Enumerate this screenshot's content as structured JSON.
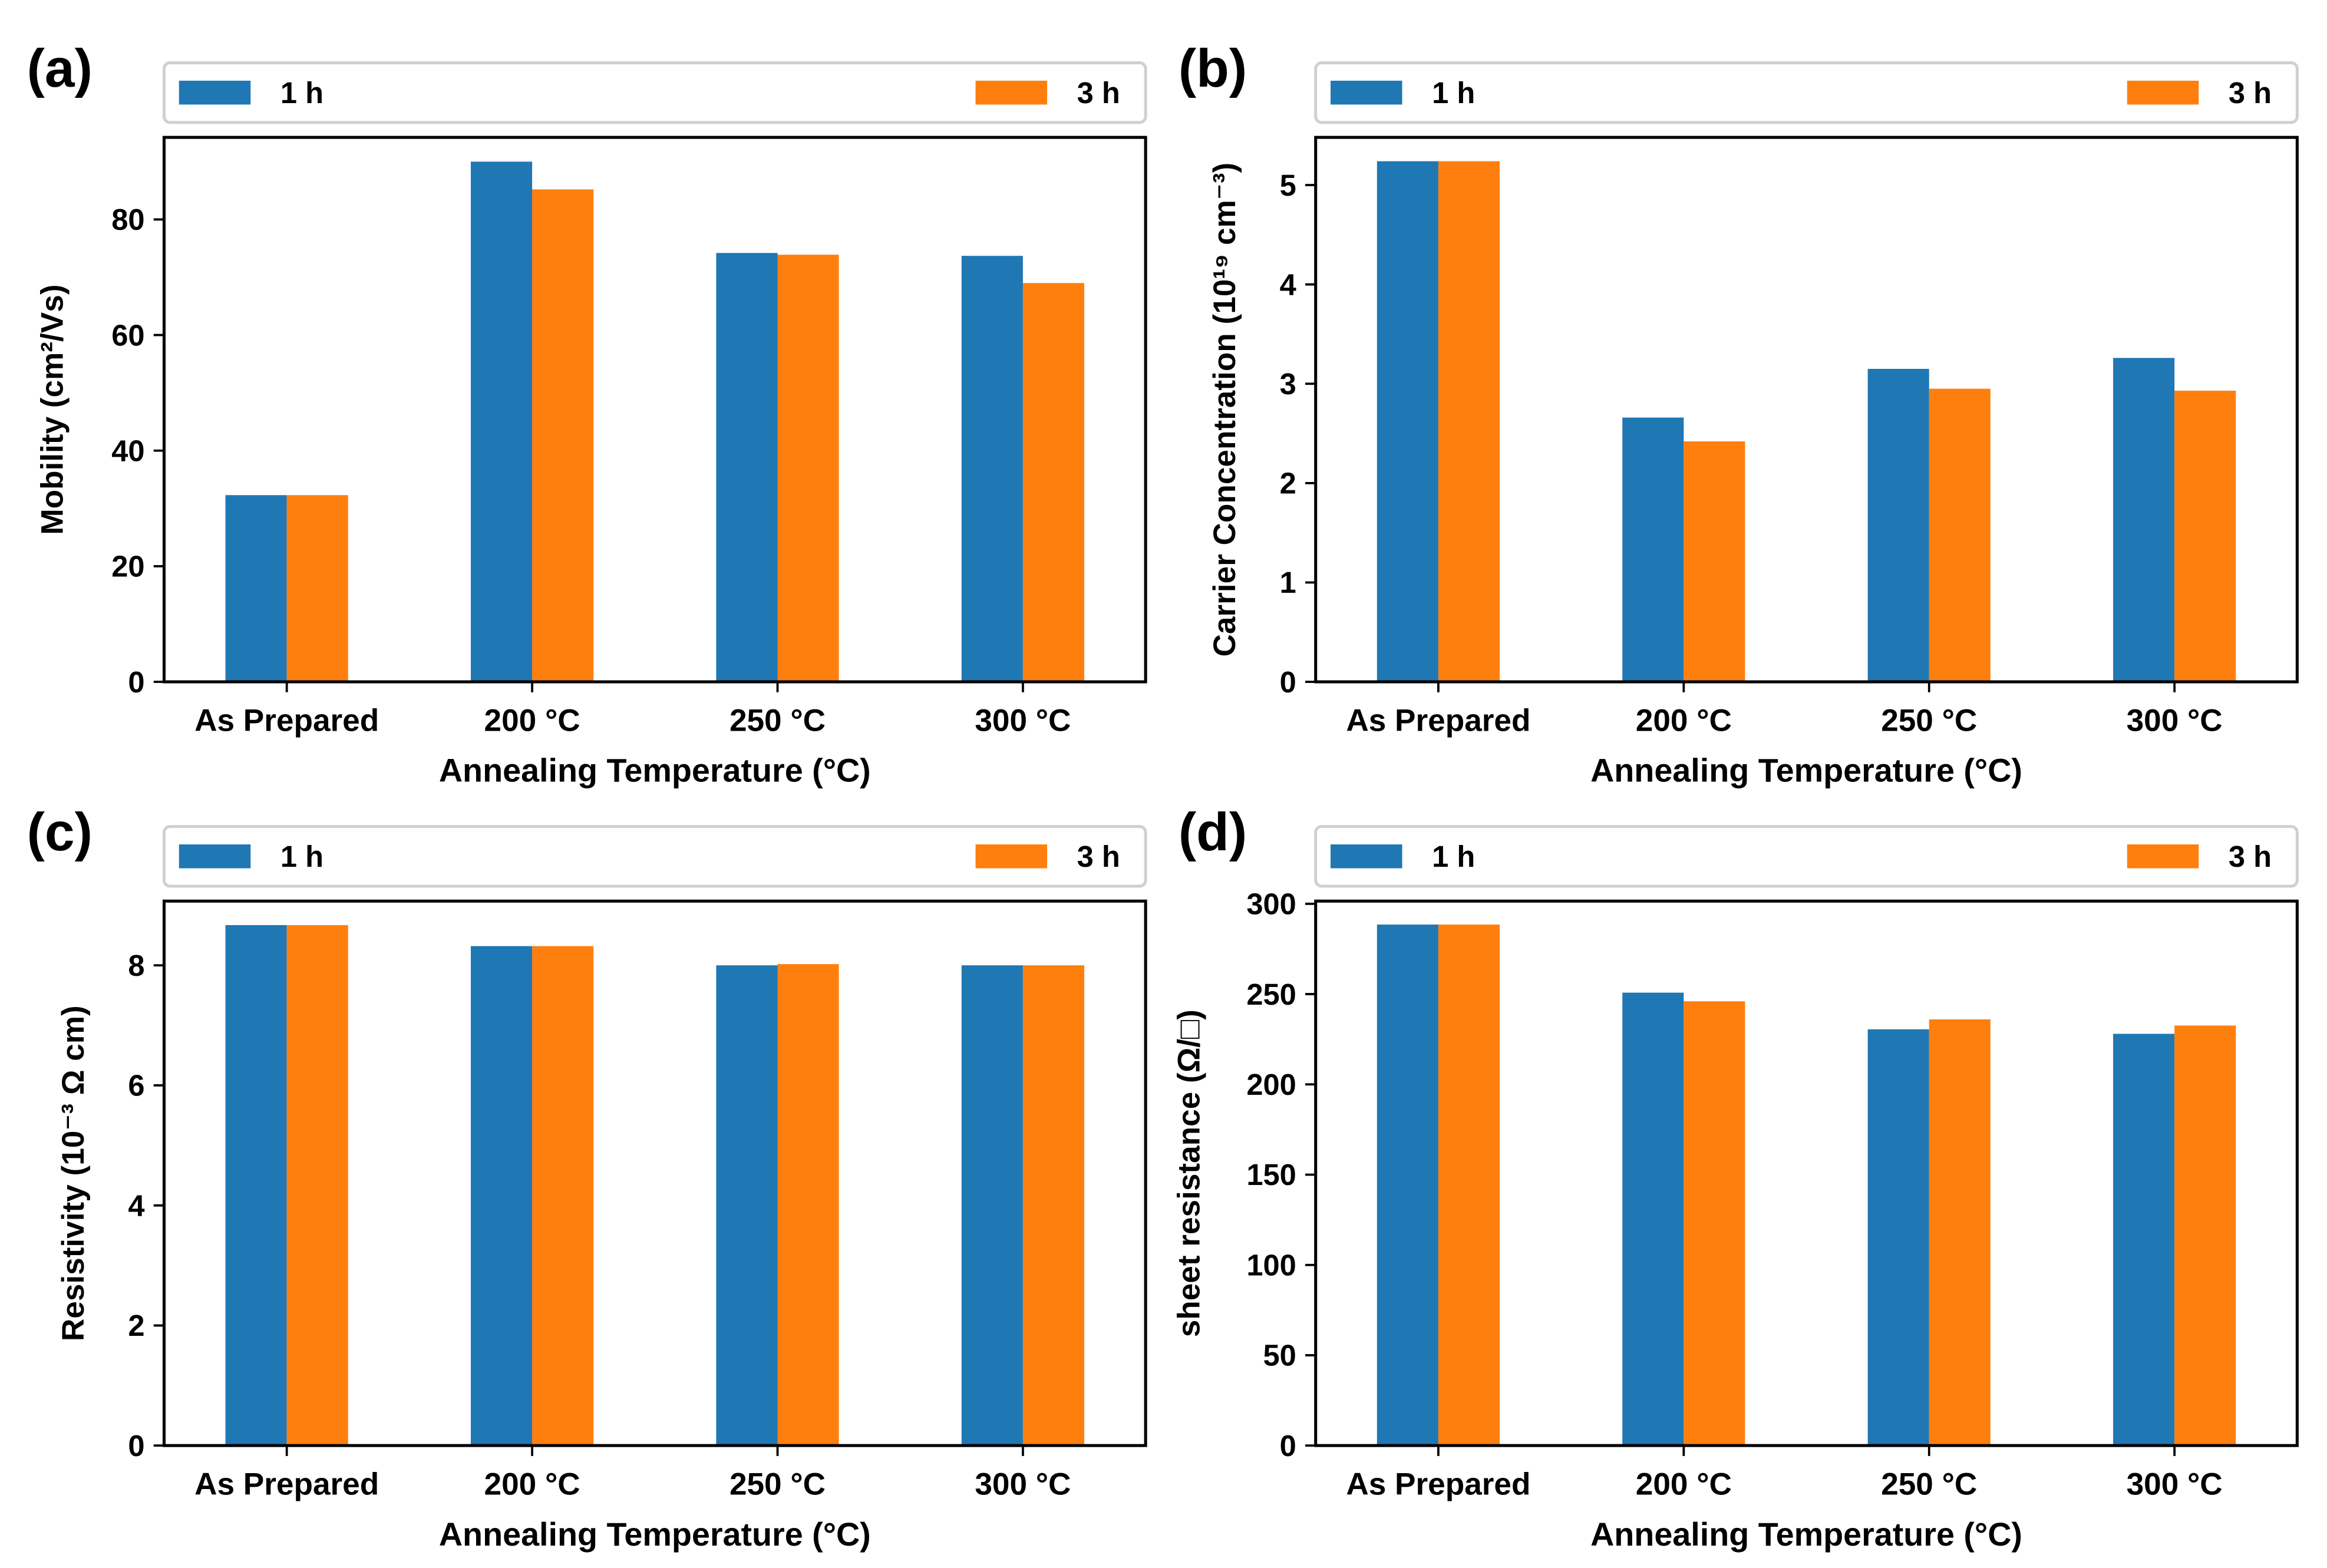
{
  "colors": {
    "1 h": "#1f77b4",
    "3 h": "#ff7f0e"
  },
  "chart_data": [
    {
      "panel": "(a)",
      "type": "bar",
      "categories": [
        "As Prepared",
        "200 °C",
        "250 °C",
        "300 °C"
      ],
      "xlabel": "Annealing Temperature (°C)",
      "ylabel": "Mobility (cm²/Vs)",
      "ylim": [
        0,
        94.2
      ],
      "yticks": [
        0,
        20,
        40,
        60,
        80
      ],
      "legend": "top",
      "grid": false,
      "series": [
        {
          "name": "1 h",
          "values": [
            32.3,
            90.0,
            74.2,
            73.7
          ]
        },
        {
          "name": "3 h",
          "values": [
            32.3,
            85.2,
            73.9,
            69.0
          ]
        }
      ]
    },
    {
      "panel": "(b)",
      "type": "bar",
      "categories": [
        "As Prepared",
        "200 °C",
        "250 °C",
        "300 °C"
      ],
      "xlabel": "Annealing Temperature (°C)",
      "ylabel": "Carrier Concentration (10¹⁹ cm⁻³)",
      "ylim": [
        0,
        5.48
      ],
      "yticks": [
        0,
        1,
        2,
        3,
        4,
        5
      ],
      "legend": "top",
      "grid": false,
      "series": [
        {
          "name": "1 h",
          "values": [
            5.24,
            2.66,
            3.15,
            3.26
          ]
        },
        {
          "name": "3 h",
          "values": [
            5.24,
            2.42,
            2.95,
            2.93
          ]
        }
      ]
    },
    {
      "panel": "(c)",
      "type": "bar",
      "categories": [
        "As Prepared",
        "200 °C",
        "250 °C",
        "300 °C"
      ],
      "xlabel": "Annealing Temperature (°C)",
      "ylabel": "Resistivity (10⁻³ Ω cm)",
      "ylim": [
        0,
        9.07
      ],
      "yticks": [
        0,
        2,
        4,
        6,
        8
      ],
      "legend": "top",
      "grid": false,
      "series": [
        {
          "name": "1 h",
          "values": [
            8.67,
            8.32,
            8.0,
            8.0
          ]
        },
        {
          "name": "3 h",
          "values": [
            8.67,
            8.32,
            8.02,
            8.0
          ]
        }
      ]
    },
    {
      "panel": "(d)",
      "type": "bar",
      "categories": [
        "As Prepared",
        "200 °C",
        "250 °C",
        "300 °C"
      ],
      "xlabel": "Annealing Temperature (°C)",
      "ylabel": "sheet resistance (Ω/□)",
      "ylim": [
        0,
        301.5
      ],
      "yticks": [
        0,
        50,
        100,
        150,
        200,
        250,
        300
      ],
      "legend": "top",
      "grid": false,
      "series": [
        {
          "name": "1 h",
          "values": [
            288.5,
            250.8,
            230.5,
            228.0
          ]
        },
        {
          "name": "3 h",
          "values": [
            288.5,
            246.0,
            236.0,
            232.6
          ]
        }
      ]
    }
  ]
}
